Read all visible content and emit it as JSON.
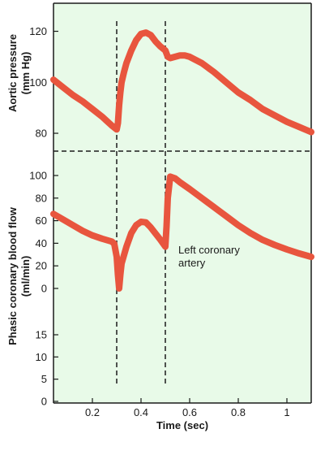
{
  "colors": {
    "background": "#e8fae8",
    "curve": "#e8553e",
    "frame": "#1a1a1a",
    "dashed": "#1a1a1a"
  },
  "chart_data": [
    {
      "type": "line",
      "title": "",
      "xlabel": "",
      "ylabel": "Aortic pressure",
      "ylabel_unit": "(mm Hg)",
      "xlim": [
        0.04,
        1.1
      ],
      "ylim": [
        73,
        131
      ],
      "yticks": [
        80,
        100,
        120
      ],
      "grid": false,
      "series": [
        {
          "x": [
            0.04,
            0.08,
            0.12,
            0.16,
            0.2,
            0.24,
            0.28,
            0.3,
            0.305,
            0.31,
            0.315,
            0.32,
            0.33,
            0.34,
            0.36,
            0.38,
            0.4,
            0.42,
            0.44,
            0.46,
            0.48,
            0.5,
            0.51,
            0.52,
            0.54,
            0.56,
            0.58,
            0.6,
            0.65,
            0.7,
            0.75,
            0.8,
            0.85,
            0.9,
            0.95,
            1.0,
            1.05,
            1.1
          ],
          "y": [
            101,
            98,
            95,
            92.5,
            89.5,
            86.5,
            83,
            81.5,
            84,
            91,
            96,
            100,
            104,
            107.5,
            112.5,
            116.5,
            119,
            119.5,
            118.5,
            116,
            114,
            112.5,
            110,
            109.5,
            110,
            110.5,
            110.5,
            110,
            107.5,
            104,
            100,
            96,
            93,
            89.5,
            87,
            84.5,
            82.5,
            80.5
          ]
        }
      ]
    },
    {
      "type": "line",
      "title": "",
      "xlabel": "Time (sec)",
      "ylabel": "Phasic coronary blood flow",
      "ylabel_unit": "(ml/min)",
      "xlim": [
        0.04,
        1.1
      ],
      "xticks": [
        0.2,
        0.4,
        0.6,
        0.8,
        1
      ],
      "xtick_labels": [
        "0.2",
        "0.4",
        "0.6",
        "0.8",
        "1"
      ],
      "yticks_upper": [
        0,
        20,
        40,
        60,
        80,
        100
      ],
      "yticks_lower": [
        0,
        5,
        10,
        15
      ],
      "grid": false,
      "annotation": [
        "Left coronary",
        "artery"
      ],
      "vlines_x": [
        0.3,
        0.5
      ],
      "series": [
        {
          "name": "Left coronary artery",
          "x": [
            0.04,
            0.08,
            0.12,
            0.16,
            0.2,
            0.24,
            0.28,
            0.29,
            0.3,
            0.305,
            0.31,
            0.315,
            0.32,
            0.34,
            0.36,
            0.38,
            0.4,
            0.42,
            0.44,
            0.46,
            0.48,
            0.5,
            0.505,
            0.51,
            0.52,
            0.54,
            0.56,
            0.6,
            0.65,
            0.7,
            0.75,
            0.8,
            0.85,
            0.9,
            0.95,
            1.0,
            1.05,
            1.1
          ],
          "y": [
            66,
            61,
            56,
            51,
            47,
            44,
            41.5,
            39.5,
            28,
            12,
            0,
            12,
            22,
            37,
            49,
            56,
            59,
            58.5,
            54,
            48.5,
            43,
            37,
            55,
            80,
            99,
            97.5,
            94,
            88,
            80,
            72,
            64,
            56,
            49,
            43,
            38.5,
            34.5,
            31,
            28
          ]
        }
      ]
    }
  ]
}
